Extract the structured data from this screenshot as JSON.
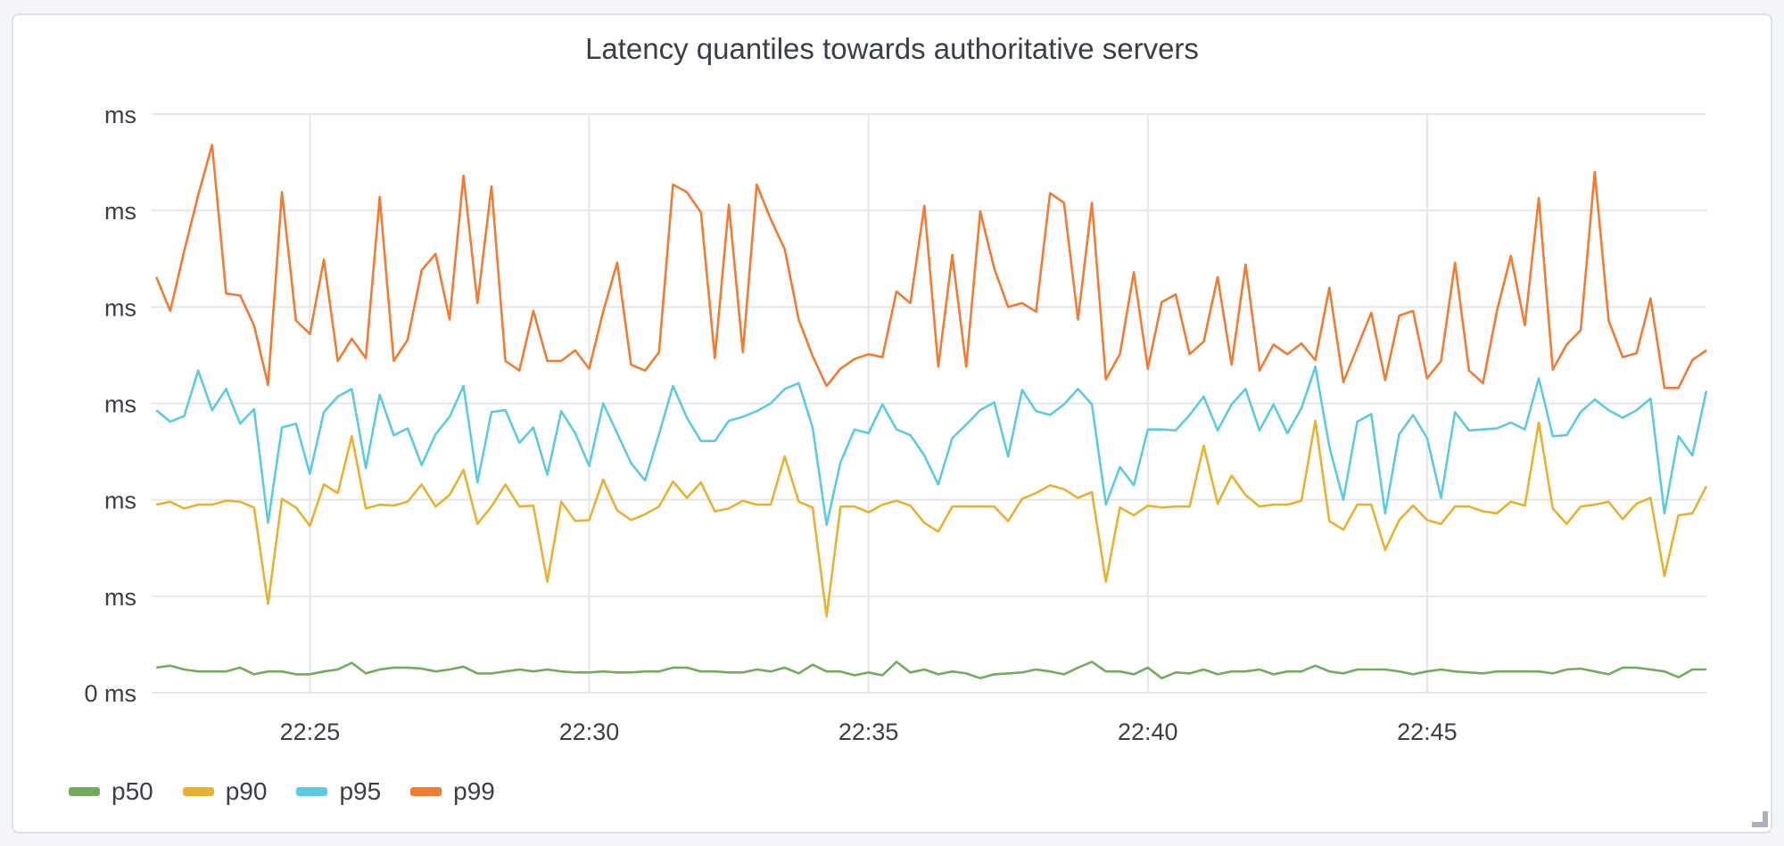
{
  "panel": {
    "resize_handle_icon": "resize-corner-icon"
  },
  "chart_data": {
    "type": "line",
    "title": "Latency quantiles towards authoritative servers",
    "xlabel": "",
    "ylabel": "",
    "x_ticks": [
      "22:25",
      "22:30",
      "22:35",
      "22:40",
      "22:45"
    ],
    "xlim": [
      "22:22:10",
      "22:50:00"
    ],
    "y_ticks": [
      0,
      1,
      2,
      3,
      4,
      5,
      6
    ],
    "y_tick_labels": [
      "0 ms",
      "ms",
      "ms",
      "ms",
      "ms",
      "ms",
      "ms"
    ],
    "ylim": [
      0,
      6
    ],
    "grid": true,
    "legend_position": "bottom-left",
    "x": [
      "22:22:15",
      "22:22:30",
      "22:22:45",
      "22:23:00",
      "22:23:15",
      "22:23:30",
      "22:23:45",
      "22:24:00",
      "22:24:15",
      "22:24:30",
      "22:24:45",
      "22:25:00",
      "22:25:15",
      "22:25:30",
      "22:25:45",
      "22:26:00",
      "22:26:15",
      "22:26:30",
      "22:26:45",
      "22:27:00",
      "22:27:15",
      "22:27:30",
      "22:27:45",
      "22:28:00",
      "22:28:15",
      "22:28:30",
      "22:28:45",
      "22:29:00",
      "22:29:15",
      "22:29:30",
      "22:29:45",
      "22:30:00",
      "22:30:15",
      "22:30:30",
      "22:30:45",
      "22:31:00",
      "22:31:15",
      "22:31:30",
      "22:31:45",
      "22:32:00",
      "22:32:15",
      "22:32:30",
      "22:32:45",
      "22:33:00",
      "22:33:15",
      "22:33:30",
      "22:33:45",
      "22:34:00",
      "22:34:15",
      "22:34:30",
      "22:34:45",
      "22:35:00",
      "22:35:15",
      "22:35:30",
      "22:35:45",
      "22:36:00",
      "22:36:15",
      "22:36:30",
      "22:36:45",
      "22:37:00",
      "22:37:15",
      "22:37:30",
      "22:37:45",
      "22:38:00",
      "22:38:15",
      "22:38:30",
      "22:38:45",
      "22:39:00",
      "22:39:15",
      "22:39:30",
      "22:39:45",
      "22:40:00",
      "22:40:15",
      "22:40:30",
      "22:40:45",
      "22:41:00",
      "22:41:15",
      "22:41:30",
      "22:41:45",
      "22:42:00",
      "22:42:15",
      "22:42:30",
      "22:42:45",
      "22:43:00",
      "22:43:15",
      "22:43:30",
      "22:43:45",
      "22:44:00",
      "22:44:15",
      "22:44:30",
      "22:44:45",
      "22:45:00",
      "22:45:15",
      "22:45:30",
      "22:45:45",
      "22:46:00",
      "22:46:15",
      "22:46:30",
      "22:46:45",
      "22:47:00",
      "22:47:15",
      "22:47:30",
      "22:47:45",
      "22:48:00",
      "22:48:15",
      "22:48:30",
      "22:48:45",
      "22:49:00",
      "22:49:15",
      "22:49:30",
      "22:49:45",
      "22:50:00"
    ],
    "series": [
      {
        "name": "p50",
        "color": "#73ab5c",
        "values": [
          0.26,
          0.28,
          0.24,
          0.22,
          0.22,
          0.22,
          0.26,
          0.19,
          0.22,
          0.22,
          0.19,
          0.19,
          0.22,
          0.24,
          0.31,
          0.2,
          0.24,
          0.26,
          0.26,
          0.25,
          0.22,
          0.24,
          0.27,
          0.2,
          0.2,
          0.22,
          0.24,
          0.22,
          0.24,
          0.22,
          0.21,
          0.21,
          0.22,
          0.21,
          0.21,
          0.22,
          0.22,
          0.26,
          0.26,
          0.22,
          0.22,
          0.21,
          0.21,
          0.24,
          0.22,
          0.26,
          0.2,
          0.29,
          0.22,
          0.22,
          0.18,
          0.21,
          0.18,
          0.32,
          0.21,
          0.24,
          0.19,
          0.22,
          0.2,
          0.15,
          0.19,
          0.2,
          0.21,
          0.24,
          0.22,
          0.19,
          0.26,
          0.32,
          0.22,
          0.22,
          0.19,
          0.26,
          0.15,
          0.21,
          0.2,
          0.24,
          0.19,
          0.22,
          0.22,
          0.24,
          0.19,
          0.22,
          0.22,
          0.28,
          0.22,
          0.2,
          0.24,
          0.24,
          0.24,
          0.22,
          0.19,
          0.22,
          0.24,
          0.22,
          0.21,
          0.2,
          0.22,
          0.22,
          0.22,
          0.22,
          0.2,
          0.24,
          0.25,
          0.22,
          0.19,
          0.26,
          0.26,
          0.24,
          0.22,
          0.16,
          0.24,
          0.24
        ]
      },
      {
        "name": "p90",
        "color": "#e8b130",
        "values": [
          1.95,
          1.98,
          1.91,
          1.95,
          1.95,
          1.99,
          1.98,
          1.92,
          0.92,
          2.01,
          1.92,
          1.73,
          2.16,
          2.07,
          2.66,
          1.91,
          1.95,
          1.94,
          1.98,
          2.16,
          1.93,
          2.05,
          2.31,
          1.75,
          1.93,
          2.16,
          1.93,
          1.94,
          1.15,
          1.98,
          1.78,
          1.79,
          2.21,
          1.89,
          1.79,
          1.85,
          1.93,
          2.19,
          2.02,
          2.18,
          1.88,
          1.91,
          1.99,
          1.95,
          1.95,
          2.45,
          1.98,
          1.92,
          0.79,
          1.93,
          1.93,
          1.87,
          1.95,
          1.99,
          1.94,
          1.76,
          1.67,
          1.93,
          1.93,
          1.93,
          1.93,
          1.78,
          2.01,
          2.07,
          2.15,
          2.11,
          2.02,
          2.08,
          1.15,
          1.92,
          1.84,
          1.94,
          1.92,
          1.93,
          1.93,
          2.56,
          1.96,
          2.25,
          2.05,
          1.93,
          1.95,
          1.95,
          1.99,
          2.82,
          1.78,
          1.69,
          1.95,
          1.95,
          1.48,
          1.79,
          1.94,
          1.79,
          1.75,
          1.93,
          1.93,
          1.88,
          1.86,
          1.98,
          1.94,
          2.8,
          1.91,
          1.75,
          1.93,
          1.95,
          1.98,
          1.8,
          1.96,
          2.02,
          1.21,
          1.84,
          1.86,
          2.14
        ]
      },
      {
        "name": "p95",
        "color": "#5ccbe0",
        "values": [
          2.93,
          2.81,
          2.87,
          3.34,
          2.93,
          3.15,
          2.79,
          2.94,
          1.76,
          2.75,
          2.79,
          2.27,
          2.91,
          3.07,
          3.15,
          2.33,
          3.09,
          2.67,
          2.74,
          2.36,
          2.68,
          2.86,
          3.18,
          2.18,
          2.91,
          2.93,
          2.59,
          2.75,
          2.26,
          2.92,
          2.69,
          2.35,
          3.0,
          2.69,
          2.38,
          2.2,
          2.68,
          3.18,
          2.85,
          2.61,
          2.61,
          2.82,
          2.86,
          2.92,
          3.0,
          3.15,
          3.21,
          2.75,
          1.74,
          2.39,
          2.73,
          2.69,
          2.99,
          2.73,
          2.67,
          2.46,
          2.16,
          2.64,
          2.78,
          2.93,
          3.01,
          2.45,
          3.14,
          2.92,
          2.88,
          2.99,
          3.15,
          2.99,
          1.95,
          2.34,
          2.15,
          2.73,
          2.73,
          2.72,
          2.88,
          3.07,
          2.72,
          2.99,
          3.15,
          2.72,
          2.99,
          2.69,
          2.95,
          3.38,
          2.55,
          2.0,
          2.81,
          2.89,
          1.86,
          2.68,
          2.88,
          2.64,
          2.02,
          2.91,
          2.72,
          2.73,
          2.74,
          2.8,
          2.73,
          3.26,
          2.66,
          2.67,
          2.91,
          3.04,
          2.93,
          2.85,
          2.93,
          3.05,
          1.86,
          2.66,
          2.46,
          3.13
        ]
      },
      {
        "name": "p99",
        "color": "#f07b32",
        "values": [
          4.31,
          3.96,
          4.58,
          5.16,
          5.68,
          4.14,
          4.12,
          3.81,
          3.19,
          5.19,
          3.86,
          3.72,
          4.49,
          3.44,
          3.67,
          3.47,
          5.14,
          3.44,
          3.66,
          4.38,
          4.55,
          3.87,
          5.36,
          4.04,
          5.25,
          3.44,
          3.34,
          3.96,
          3.44,
          3.44,
          3.55,
          3.36,
          3.95,
          4.46,
          3.4,
          3.34,
          3.53,
          5.27,
          5.19,
          4.98,
          3.47,
          5.06,
          3.53,
          5.27,
          4.91,
          4.6,
          3.87,
          3.49,
          3.18,
          3.36,
          3.46,
          3.51,
          3.48,
          4.16,
          4.04,
          5.05,
          3.38,
          4.54,
          3.38,
          4.99,
          4.4,
          4.0,
          4.04,
          3.95,
          5.18,
          5.08,
          3.87,
          5.08,
          3.25,
          3.51,
          4.36,
          3.36,
          4.05,
          4.13,
          3.51,
          3.64,
          4.31,
          3.4,
          4.44,
          3.34,
          3.61,
          3.51,
          3.62,
          3.45,
          4.2,
          3.22,
          3.58,
          3.94,
          3.24,
          3.91,
          3.96,
          3.26,
          3.44,
          4.46,
          3.34,
          3.21,
          3.96,
          4.53,
          3.81,
          5.13,
          3.35,
          3.61,
          3.76,
          5.4,
          3.86,
          3.48,
          3.52,
          4.09,
          3.16,
          3.16,
          3.45,
          3.55
        ]
      }
    ]
  }
}
